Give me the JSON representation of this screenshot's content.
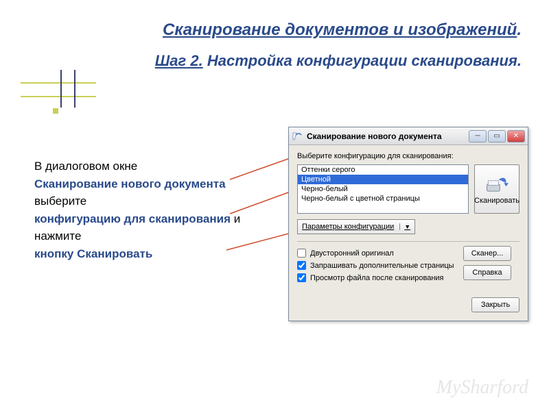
{
  "title": {
    "main": "Сканирование документов и изображений",
    "dot": ".",
    "step": "Шаг 2.",
    "sub": "Настройка конфигурации сканирования."
  },
  "body": {
    "line1": "В диалоговом окне",
    "bold1": "Сканирование нового документа",
    "line2": "выберите",
    "bold2": "конфигурацию для сканирования",
    "line3": " и нажмите",
    "bold3": "кнопку Сканировать"
  },
  "dialog": {
    "title": "Сканирование нового документа",
    "prompt": "Выберите конфигурацию для сканирования:",
    "items": [
      "Оттенки серого",
      "Цветной",
      "Черно-белый",
      "Черно-белый с цветной страницы"
    ],
    "selected_index": 1,
    "params_btn": "Параметры конфигурации",
    "scan_btn": "Сканировать",
    "check1": "Двусторонний оригинал",
    "check2": "Запрашивать дополнительные страницы",
    "check3": "Просмотр файла после сканирования",
    "btn_scanner": "Сканер...",
    "btn_help": "Справка",
    "btn_close": "Закрыть",
    "check1_checked": false,
    "check2_checked": true,
    "check3_checked": true
  },
  "colors": {
    "accent": "#2a4a8a",
    "arrow": "#d04a2a",
    "selection": "#2f6bd8"
  },
  "watermark": "MySharford"
}
